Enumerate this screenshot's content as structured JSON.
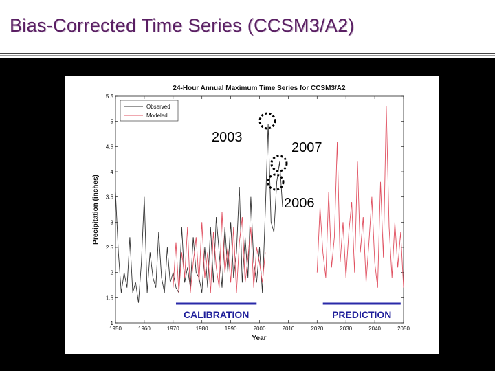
{
  "slide": {
    "title": "Bias-Corrected Time Series (CCSM3/A2)"
  },
  "colors": {
    "title": "#5a1f63",
    "observed": "#333333",
    "modeled": "#e05060",
    "period_bar": "#2a2aa8",
    "period_text": "#1e1e9a",
    "panel": "#000000"
  },
  "chart_data": {
    "type": "line",
    "title": "24-Hour Annual Maximum Time Series for CCSM3/A2",
    "xlabel": "Year",
    "ylabel": "Precipitation (inches)",
    "xlim": [
      1950,
      2050
    ],
    "ylim": [
      1,
      5.5
    ],
    "xticks": [
      1950,
      1960,
      1970,
      1980,
      1990,
      2000,
      2010,
      2020,
      2030,
      2040,
      2050
    ],
    "yticks": [
      1,
      1.5,
      2,
      2.5,
      3,
      3.5,
      4,
      4.5,
      5,
      5.5
    ],
    "grid": false,
    "legend_position": "top-left",
    "series": [
      {
        "name": "Observed",
        "x": [
          1950,
          1951,
          1952,
          1953,
          1954,
          1955,
          1956,
          1957,
          1958,
          1959,
          1960,
          1961,
          1962,
          1963,
          1964,
          1965,
          1966,
          1967,
          1968,
          1969,
          1970,
          1971,
          1972,
          1973,
          1974,
          1975,
          1976,
          1977,
          1978,
          1979,
          1980,
          1981,
          1982,
          1983,
          1984,
          1985,
          1986,
          1987,
          1988,
          1989,
          1990,
          1991,
          1992,
          1993,
          1994,
          1995,
          1996,
          1997,
          1998,
          1999,
          2000,
          2001,
          2002,
          2003,
          2004,
          2005,
          2006,
          2007,
          2008
        ],
        "values": [
          3.6,
          2.4,
          1.6,
          2.0,
          1.7,
          2.7,
          1.6,
          1.8,
          1.4,
          2.2,
          3.5,
          1.6,
          2.4,
          1.9,
          1.7,
          2.8,
          1.9,
          1.6,
          2.5,
          1.8,
          2.0,
          1.7,
          1.6,
          2.9,
          1.8,
          2.1,
          1.7,
          2.7,
          2.0,
          1.9,
          1.6,
          2.5,
          1.7,
          2.9,
          1.8,
          3.1,
          2.4,
          1.7,
          2.9,
          2.0,
          3.0,
          1.9,
          2.4,
          3.7,
          1.8,
          2.7,
          1.9,
          3.5,
          2.2,
          1.8,
          2.5,
          1.6,
          3.2,
          4.95,
          3.0,
          2.8,
          3.8,
          4.2,
          3.3
        ]
      },
      {
        "name": "Modeled",
        "x": [
          1970,
          1971,
          1972,
          1973,
          1974,
          1975,
          1976,
          1977,
          1978,
          1979,
          1980,
          1981,
          1982,
          1983,
          1984,
          1985,
          1986,
          1987,
          1988,
          1989,
          1990,
          1991,
          1992,
          1993,
          1994,
          1995,
          1996,
          1997,
          1998,
          1999,
          2000,
          2001,
          2002,
          2020,
          2021,
          2022,
          2023,
          2024,
          2025,
          2026,
          2027,
          2028,
          2029,
          2030,
          2031,
          2032,
          2033,
          2034,
          2035,
          2036,
          2037,
          2038,
          2039,
          2040,
          2041,
          2042,
          2043,
          2044,
          2045,
          2046,
          2047,
          2048,
          2049,
          2050
        ],
        "values": [
          1.7,
          2.6,
          1.6,
          2.4,
          1.9,
          2.9,
          1.6,
          2.2,
          2.7,
          1.8,
          3.0,
          1.9,
          2.4,
          1.6,
          2.8,
          2.1,
          1.7,
          3.2,
          2.0,
          2.5,
          1.8,
          2.9,
          1.6,
          2.6,
          3.1,
          1.8,
          2.3,
          2.9,
          1.7,
          2.5,
          2.2,
          1.8,
          2.4,
          2.0,
          3.3,
          2.4,
          1.9,
          3.6,
          2.1,
          2.7,
          4.6,
          2.2,
          3.0,
          1.9,
          2.8,
          3.4,
          2.0,
          4.2,
          2.4,
          3.1,
          1.8,
          2.6,
          3.5,
          2.2,
          1.7,
          3.8,
          2.3,
          5.3,
          2.9,
          1.9,
          3.0,
          2.1,
          2.8,
          1.7
        ]
      }
    ],
    "annotations": [
      {
        "label": "2003",
        "x": 2003
      },
      {
        "label": "2007",
        "x": 2007
      },
      {
        "label": "2006",
        "x": 2006
      }
    ],
    "periods": [
      {
        "label": "CALIBRATION",
        "x_start": 1971,
        "x_end": 1999
      },
      {
        "label": "PREDICTION",
        "x_start": 2022,
        "x_end": 2049
      }
    ]
  }
}
